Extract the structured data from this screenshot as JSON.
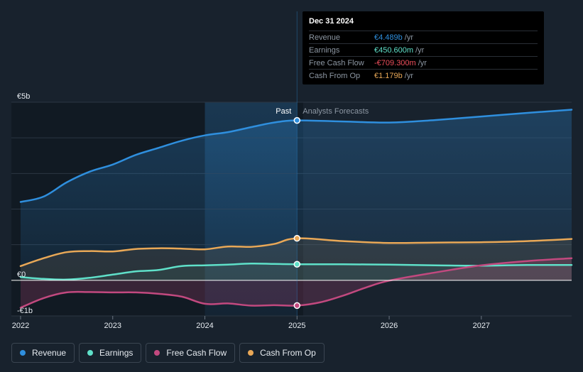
{
  "chart_data": {
    "type": "line",
    "title": "",
    "x_range": [
      2021.9,
      2027.98
    ],
    "y_range": [
      -1.0,
      5.0
    ],
    "y_ticks": [
      {
        "value": 5,
        "label": "€5b"
      },
      {
        "value": 0,
        "label": "€0"
      },
      {
        "value": -1,
        "label": "-€1b"
      }
    ],
    "x_ticks": [
      {
        "value": 2022,
        "label": "2022"
      },
      {
        "value": 2023,
        "label": "2023"
      },
      {
        "value": 2024,
        "label": "2024"
      },
      {
        "value": 2025,
        "label": "2025"
      },
      {
        "value": 2026,
        "label": "2026"
      },
      {
        "value": 2027,
        "label": "2027"
      }
    ],
    "divider_x": 2025.0,
    "highlight_start_x": 2024.0,
    "past_label": "Past",
    "forecast_label": "Analysts Forecasts",
    "series": [
      {
        "name": "Revenue",
        "color": "#2f8fde",
        "points": [
          [
            2022.0,
            2.2
          ],
          [
            2022.25,
            2.35
          ],
          [
            2022.5,
            2.75
          ],
          [
            2022.75,
            3.05
          ],
          [
            2023.0,
            3.25
          ],
          [
            2023.25,
            3.52
          ],
          [
            2023.5,
            3.72
          ],
          [
            2023.75,
            3.92
          ],
          [
            2024.0,
            4.07
          ],
          [
            2024.25,
            4.16
          ],
          [
            2024.5,
            4.3
          ],
          [
            2024.75,
            4.43
          ],
          [
            2025.0,
            4.489
          ],
          [
            2025.5,
            4.46
          ],
          [
            2026.0,
            4.43
          ],
          [
            2026.5,
            4.5
          ],
          [
            2027.0,
            4.6
          ],
          [
            2027.5,
            4.7
          ],
          [
            2027.98,
            4.79
          ]
        ]
      },
      {
        "name": "Earnings",
        "color": "#5fe0c9",
        "points": [
          [
            2022.0,
            0.09
          ],
          [
            2022.25,
            0.04
          ],
          [
            2022.5,
            0.02
          ],
          [
            2022.75,
            0.07
          ],
          [
            2023.0,
            0.16
          ],
          [
            2023.25,
            0.25
          ],
          [
            2023.5,
            0.29
          ],
          [
            2023.75,
            0.4
          ],
          [
            2024.0,
            0.42
          ],
          [
            2024.25,
            0.44
          ],
          [
            2024.5,
            0.47
          ],
          [
            2024.75,
            0.46
          ],
          [
            2025.0,
            0.4506
          ],
          [
            2025.5,
            0.45
          ],
          [
            2026.0,
            0.44
          ],
          [
            2026.5,
            0.42
          ],
          [
            2027.0,
            0.41
          ],
          [
            2027.5,
            0.43
          ],
          [
            2027.98,
            0.43
          ]
        ]
      },
      {
        "name": "Free Cash Flow",
        "color": "#c2497f",
        "points": [
          [
            2022.0,
            -0.77
          ],
          [
            2022.25,
            -0.5
          ],
          [
            2022.5,
            -0.34
          ],
          [
            2022.75,
            -0.33
          ],
          [
            2023.0,
            -0.34
          ],
          [
            2023.25,
            -0.34
          ],
          [
            2023.5,
            -0.38
          ],
          [
            2023.75,
            -0.46
          ],
          [
            2024.0,
            -0.66
          ],
          [
            2024.25,
            -0.65
          ],
          [
            2024.5,
            -0.71
          ],
          [
            2024.75,
            -0.7
          ],
          [
            2025.0,
            -0.7093
          ],
          [
            2025.25,
            -0.62
          ],
          [
            2025.5,
            -0.43
          ],
          [
            2025.75,
            -0.2
          ],
          [
            2026.0,
            -0.01
          ],
          [
            2026.5,
            0.22
          ],
          [
            2027.0,
            0.42
          ],
          [
            2027.5,
            0.54
          ],
          [
            2027.98,
            0.62
          ]
        ]
      },
      {
        "name": "Cash From Op",
        "color": "#e9a857",
        "points": [
          [
            2022.0,
            0.4
          ],
          [
            2022.25,
            0.62
          ],
          [
            2022.5,
            0.79
          ],
          [
            2022.75,
            0.82
          ],
          [
            2023.0,
            0.81
          ],
          [
            2023.25,
            0.88
          ],
          [
            2023.5,
            0.9
          ],
          [
            2023.75,
            0.89
          ],
          [
            2024.0,
            0.87
          ],
          [
            2024.25,
            0.95
          ],
          [
            2024.5,
            0.94
          ],
          [
            2024.75,
            1.02
          ],
          [
            2025.0,
            1.179
          ],
          [
            2025.5,
            1.1
          ],
          [
            2026.0,
            1.05
          ],
          [
            2026.5,
            1.06
          ],
          [
            2027.0,
            1.07
          ],
          [
            2027.5,
            1.1
          ],
          [
            2027.98,
            1.16
          ]
        ]
      }
    ],
    "tooltip": {
      "date": "Dec 31 2024",
      "rows": [
        {
          "name": "Revenue",
          "value": "€4.489b",
          "unit": "/yr",
          "color": "#2f8fde"
        },
        {
          "name": "Earnings",
          "value": "€450.600m",
          "unit": "/yr",
          "color": "#5fe0c9"
        },
        {
          "name": "Free Cash Flow",
          "value": "-€709.300m",
          "unit": "/yr",
          "color": "#ef4f5c"
        },
        {
          "name": "Cash From Op",
          "value": "€1.179b",
          "unit": "/yr",
          "color": "#e9a857"
        }
      ]
    },
    "legend": [
      {
        "name": "Revenue",
        "color": "#2f8fde"
      },
      {
        "name": "Earnings",
        "color": "#5fe0c9"
      },
      {
        "name": "Free Cash Flow",
        "color": "#c2497f"
      },
      {
        "name": "Cash From Op",
        "color": "#e9a857"
      }
    ]
  }
}
